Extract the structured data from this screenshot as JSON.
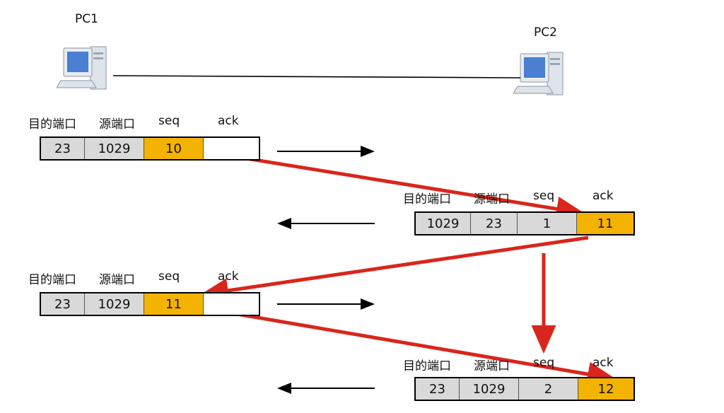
{
  "hosts": {
    "pc1": "PC1",
    "pc2": "PC2"
  },
  "headers": {
    "dst_port": "目的端口",
    "src_port": "源端口",
    "seq": "seq",
    "ack": "ack"
  },
  "packets": [
    {
      "dst": "23",
      "src": "1029",
      "seq": "10",
      "ack": ""
    },
    {
      "dst": "1029",
      "src": "23",
      "seq": "1",
      "ack": "11"
    },
    {
      "dst": "23",
      "src": "1029",
      "seq": "11",
      "ack": ""
    },
    {
      "dst": "23",
      "src": "1029",
      "seq": "2",
      "ack": "12"
    }
  ],
  "colors": {
    "highlight": "#f5b301",
    "cell": "#d9d9d9",
    "arrow_red": "#d9261c",
    "arrow_black": "#000000"
  }
}
